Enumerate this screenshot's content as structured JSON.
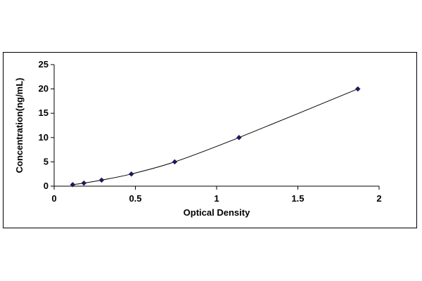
{
  "chart_data": {
    "type": "scatter",
    "title": "",
    "xlabel": "Optical Density",
    "ylabel": "Concentration(ng/mL)",
    "xlim": [
      0,
      2
    ],
    "ylim": [
      0,
      25
    ],
    "x_ticks": [
      "0",
      "0.5",
      "1",
      "1.5",
      "2"
    ],
    "y_ticks": [
      "0",
      "5",
      "10",
      "15",
      "20",
      "25"
    ],
    "grid": false,
    "legend": "none",
    "series": [
      {
        "x": [
          0.114,
          0.183,
          0.292,
          0.475,
          0.742,
          1.138,
          1.869
        ],
        "y": [
          0.31,
          0.63,
          1.25,
          2.5,
          5,
          10,
          20
        ],
        "marker": "diamond",
        "color": "#1a1a5e",
        "fit_line": true
      }
    ]
  }
}
